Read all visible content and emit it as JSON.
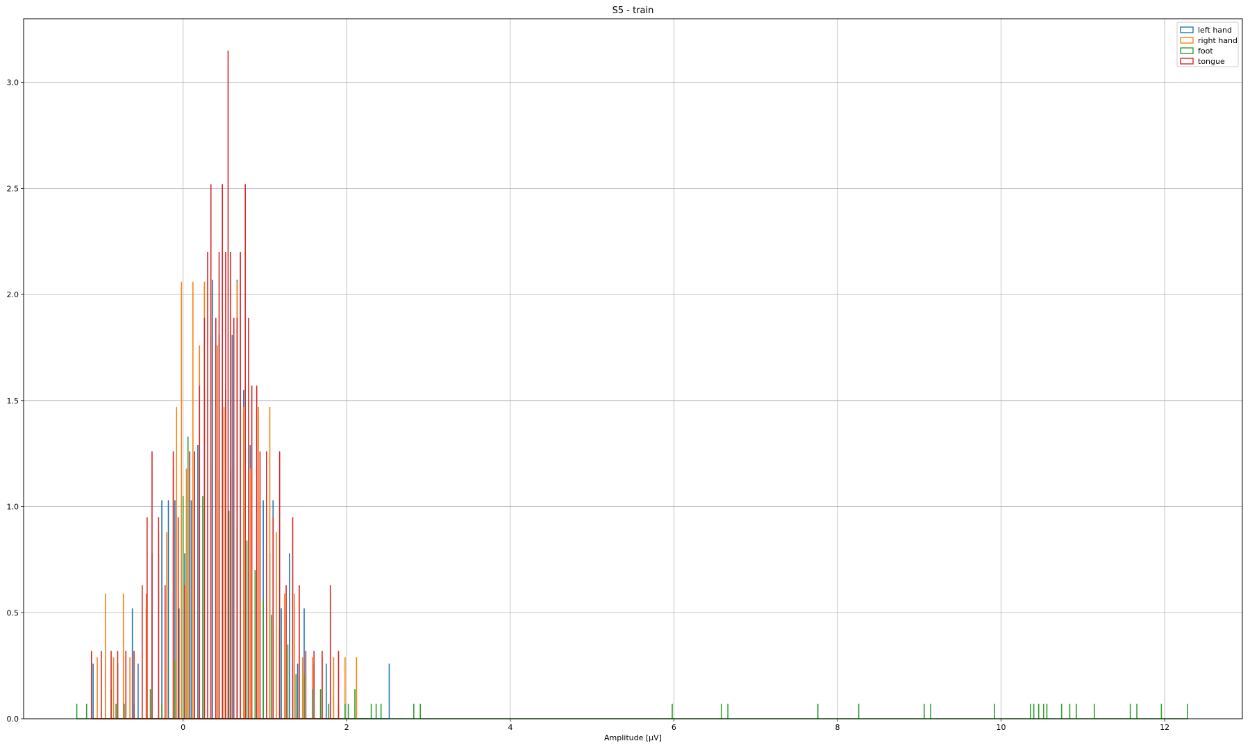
{
  "chart_data": {
    "type": "histogram",
    "title": "S5 - train",
    "xlabel": "Amplitude [μV]",
    "ylabel": "",
    "xlim": [
      -1.95,
      12.95
    ],
    "ylim": [
      0,
      3.3
    ],
    "xticks": [
      0,
      2,
      4,
      6,
      8,
      10,
      12
    ],
    "yticks": [
      0.0,
      0.5,
      1.0,
      1.5,
      2.0,
      2.5,
      3.0
    ],
    "xtick_labels": [
      "0",
      "2",
      "4",
      "6",
      "8",
      "10",
      "12"
    ],
    "ytick_labels": [
      "0.0",
      "0.5",
      "1.0",
      "1.5",
      "2.0",
      "2.5",
      "3.0"
    ],
    "grid": true,
    "legend_position": "top-right",
    "histtype": "step",
    "series": [
      {
        "name": "left hand",
        "color": "#1f77b4",
        "bins": [
          [
            -1.1,
            0.26
          ],
          [
            -0.95,
            0.26
          ],
          [
            -0.8,
            0.26
          ],
          [
            -0.62,
            0.52
          ],
          [
            -0.55,
            0.26
          ],
          [
            -0.45,
            0.52
          ],
          [
            -0.38,
            0.78
          ],
          [
            -0.3,
            0.78
          ],
          [
            -0.26,
            1.03
          ],
          [
            -0.18,
            1.03
          ],
          [
            -0.1,
            1.03
          ],
          [
            -0.05,
            0.52
          ],
          [
            0.02,
            0.78
          ],
          [
            0.1,
            1.03
          ],
          [
            0.18,
            1.29
          ],
          [
            0.26,
            1.55
          ],
          [
            0.34,
            1.81
          ],
          [
            0.36,
            2.07
          ],
          [
            0.44,
            1.81
          ],
          [
            0.52,
            1.55
          ],
          [
            0.6,
            1.81
          ],
          [
            0.66,
            2.07
          ],
          [
            0.74,
            1.55
          ],
          [
            0.82,
            1.29
          ],
          [
            0.9,
            1.03
          ],
          [
            0.98,
            1.03
          ],
          [
            1.06,
            0.78
          ],
          [
            1.1,
            1.03
          ],
          [
            1.2,
            0.52
          ],
          [
            1.3,
            0.78
          ],
          [
            1.4,
            0.26
          ],
          [
            1.48,
            0.52
          ],
          [
            1.6,
            0.26
          ],
          [
            1.75,
            0.26
          ],
          [
            2.52,
            0.26
          ]
        ]
      },
      {
        "name": "right hand",
        "color": "#ff7f0e",
        "bins": [
          [
            -1.05,
            0.29
          ],
          [
            -0.95,
            0.29
          ],
          [
            -0.85,
            0.29
          ],
          [
            -0.95,
            0.59
          ],
          [
            -0.73,
            0.59
          ],
          [
            -0.65,
            0.29
          ],
          [
            -0.45,
            0.59
          ],
          [
            -0.3,
            0.88
          ],
          [
            -0.2,
            0.88
          ],
          [
            -0.12,
            1.18
          ],
          [
            -0.08,
            1.47
          ],
          [
            -0.02,
            2.06
          ],
          [
            0.04,
            1.18
          ],
          [
            0.12,
            2.06
          ],
          [
            0.2,
            1.76
          ],
          [
            0.26,
            2.06
          ],
          [
            0.34,
            2.06
          ],
          [
            0.42,
            1.76
          ],
          [
            0.5,
            1.47
          ],
          [
            0.58,
            1.18
          ],
          [
            0.66,
            2.06
          ],
          [
            0.74,
            1.47
          ],
          [
            0.82,
            1.18
          ],
          [
            0.92,
            1.47
          ],
          [
            1.06,
            1.47
          ],
          [
            1.14,
            0.88
          ],
          [
            1.24,
            0.59
          ],
          [
            1.36,
            0.59
          ],
          [
            1.46,
            0.29
          ],
          [
            1.58,
            0.29
          ],
          [
            1.7,
            0.29
          ],
          [
            1.84,
            0.29
          ],
          [
            1.98,
            0.29
          ],
          [
            2.12,
            0.29
          ]
        ]
      },
      {
        "name": "foot",
        "color": "#2ca02c",
        "bins": [
          [
            -1.3,
            0.07
          ],
          [
            -1.18,
            0.07
          ],
          [
            -0.88,
            0.14
          ],
          [
            -0.82,
            0.07
          ],
          [
            -0.72,
            0.07
          ],
          [
            -0.6,
            0.07
          ],
          [
            -0.4,
            0.14
          ],
          [
            -0.26,
            0.07
          ],
          [
            -0.1,
            0.28
          ],
          [
            0.0,
            1.05
          ],
          [
            0.06,
            1.33
          ],
          [
            0.14,
            1.26
          ],
          [
            0.24,
            1.05
          ],
          [
            0.34,
            1.19
          ],
          [
            0.44,
            1.12
          ],
          [
            0.56,
            0.98
          ],
          [
            0.66,
            0.91
          ],
          [
            0.78,
            0.84
          ],
          [
            0.88,
            0.7
          ],
          [
            0.98,
            0.56
          ],
          [
            1.08,
            0.49
          ],
          [
            1.18,
            0.42
          ],
          [
            1.28,
            0.35
          ],
          [
            1.38,
            0.21
          ],
          [
            1.48,
            0.21
          ],
          [
            1.58,
            0.14
          ],
          [
            1.68,
            0.14
          ],
          [
            1.78,
            0.07
          ],
          [
            1.9,
            0.07
          ],
          [
            1.98,
            0.07
          ],
          [
            2.02,
            0.07
          ],
          [
            2.1,
            0.14
          ],
          [
            2.3,
            0.07
          ],
          [
            2.36,
            0.07
          ],
          [
            2.42,
            0.07
          ],
          [
            2.82,
            0.07
          ],
          [
            2.9,
            0.07
          ],
          [
            5.98,
            0.07
          ],
          [
            6.58,
            0.07
          ],
          [
            6.66,
            0.07
          ],
          [
            7.76,
            0.07
          ],
          [
            8.26,
            0.07
          ],
          [
            9.06,
            0.07
          ],
          [
            9.14,
            0.07
          ],
          [
            9.92,
            0.07
          ],
          [
            10.36,
            0.07
          ],
          [
            10.4,
            0.07
          ],
          [
            10.46,
            0.07
          ],
          [
            10.52,
            0.07
          ],
          [
            10.56,
            0.07
          ],
          [
            10.74,
            0.07
          ],
          [
            10.84,
            0.07
          ],
          [
            10.92,
            0.07
          ],
          [
            11.14,
            0.07
          ],
          [
            11.58,
            0.07
          ],
          [
            11.66,
            0.07
          ],
          [
            11.96,
            0.07
          ],
          [
            12.28,
            0.07
          ]
        ]
      },
      {
        "name": "tongue",
        "color": "#d62728",
        "bins": [
          [
            -1.12,
            0.32
          ],
          [
            -1.0,
            0.32
          ],
          [
            -0.88,
            0.32
          ],
          [
            -0.8,
            0.32
          ],
          [
            -0.7,
            0.32
          ],
          [
            -0.6,
            0.32
          ],
          [
            -0.5,
            0.63
          ],
          [
            -0.44,
            0.95
          ],
          [
            -0.38,
            1.26
          ],
          [
            -0.3,
            0.95
          ],
          [
            -0.22,
            0.63
          ],
          [
            -0.12,
            1.26
          ],
          [
            -0.06,
            0.95
          ],
          [
            0.02,
            0.63
          ],
          [
            0.08,
            1.26
          ],
          [
            0.14,
            1.26
          ],
          [
            0.2,
            1.57
          ],
          [
            0.26,
            1.89
          ],
          [
            0.3,
            2.2
          ],
          [
            0.34,
            2.52
          ],
          [
            0.4,
            1.89
          ],
          [
            0.44,
            2.2
          ],
          [
            0.48,
            2.52
          ],
          [
            0.52,
            2.2
          ],
          [
            0.55,
            3.15
          ],
          [
            0.58,
            2.2
          ],
          [
            0.62,
            1.89
          ],
          [
            0.66,
            1.89
          ],
          [
            0.7,
            2.2
          ],
          [
            0.76,
            2.52
          ],
          [
            0.8,
            1.89
          ],
          [
            0.84,
            1.57
          ],
          [
            0.9,
            1.57
          ],
          [
            0.94,
            1.26
          ],
          [
            1.02,
            1.26
          ],
          [
            1.1,
            0.95
          ],
          [
            1.18,
            1.26
          ],
          [
            1.26,
            0.63
          ],
          [
            1.34,
            0.95
          ],
          [
            1.42,
            0.63
          ],
          [
            1.5,
            0.32
          ],
          [
            1.6,
            0.32
          ],
          [
            1.7,
            0.32
          ],
          [
            1.8,
            0.63
          ],
          [
            1.9,
            0.32
          ]
        ]
      }
    ]
  }
}
